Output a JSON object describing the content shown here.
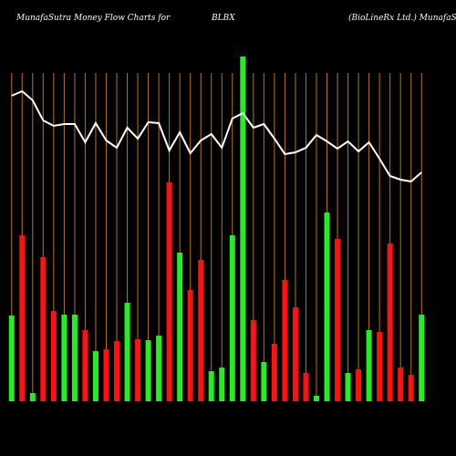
{
  "chart_data": {
    "type": "bar",
    "title": "MunafaSutra  Money Flow  Charts for",
    "ticker": "BLBX",
    "company": "(BioLineRx Ltd.) MunafaSutra",
    "background": "#000000",
    "grid": true,
    "grid_color": "#b8731a",
    "categories": [
      null,
      null,
      null,
      null,
      null,
      null,
      null,
      null,
      null,
      null,
      null,
      null,
      null,
      null,
      null,
      null,
      null,
      null,
      null,
      null,
      null,
      null,
      null,
      null,
      null,
      null,
      null,
      null,
      null,
      null,
      null,
      null,
      null,
      null,
      null,
      null,
      null,
      null,
      null,
      null
    ],
    "values": [
      94,
      182,
      9,
      158,
      99,
      95,
      95,
      78,
      55,
      57,
      66,
      108,
      68,
      67,
      72,
      240,
      163,
      122,
      155,
      33,
      37,
      182,
      378,
      89,
      43,
      63,
      133,
      103,
      31,
      6,
      207,
      178,
      31,
      35,
      78,
      76,
      173,
      37,
      29,
      95
    ],
    "colors": [
      "#22ee22",
      "#ff1111",
      "#22ee22",
      "#ff1111",
      "#ff1111",
      "#22ee22",
      "#22ee22",
      "#ff1111",
      "#22ee22",
      "#ff1111",
      "#ff1111",
      "#22ee22",
      "#ff1111",
      "#22ee22",
      "#22ee22",
      "#ff1111",
      "#22ee22",
      "#ff1111",
      "#ff1111",
      "#22ee22",
      "#22ee22",
      "#22ee22",
      "#22ee22",
      "#ff1111",
      "#22ee22",
      "#ff1111",
      "#ff1111",
      "#ff1111",
      "#ff1111",
      "#22ee22",
      "#22ee22",
      "#ff1111",
      "#22ee22",
      "#ff1111",
      "#22ee22",
      "#ff1111",
      "#ff1111",
      "#ff1111",
      "#ff1111",
      "#22ee22"
    ],
    "ylim": [
      0,
      380
    ],
    "line": {
      "color": "#ffffff",
      "axis": "y2",
      "values": [
        335,
        340,
        330,
        308,
        302,
        304,
        304,
        284,
        305,
        286,
        278,
        300,
        288,
        306,
        305,
        275,
        295,
        272,
        286,
        293,
        278,
        310,
        316,
        300,
        304,
        288,
        271,
        273,
        278,
        292,
        285,
        277,
        285,
        274,
        284,
        266,
        247,
        243,
        241,
        251
      ]
    },
    "y2lim": [
      0,
      380
    ]
  }
}
